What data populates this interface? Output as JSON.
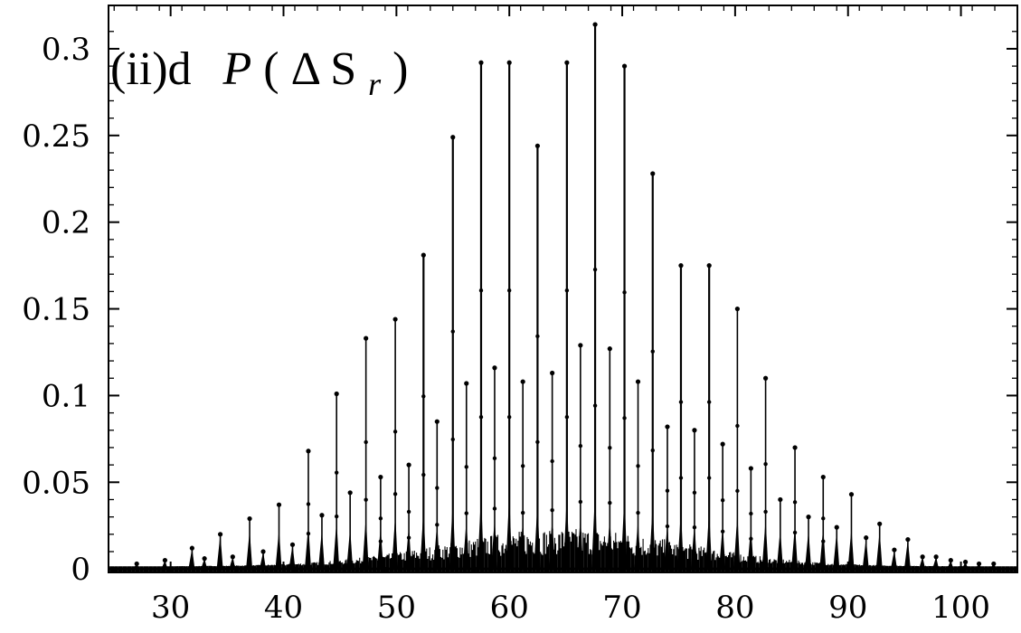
{
  "chart_data": {
    "type": "line",
    "title": "(ii)d",
    "title_math": {
      "fn": "P",
      "open": "(",
      "delta": "Δ",
      "var": "S",
      "sub": "r",
      "close": ")"
    },
    "xlabel": "",
    "ylabel": "",
    "xlim": [
      24.5,
      105
    ],
    "ylim": [
      -0.002,
      0.325
    ],
    "xticks": [
      30,
      40,
      50,
      60,
      70,
      80,
      90,
      100
    ],
    "yticks": [
      0,
      0.05,
      0.1,
      0.15,
      0.2,
      0.25,
      0.3
    ],
    "ytick_labels": [
      "0",
      "0.05",
      "0.1",
      "0.15",
      "0.2",
      "0.25",
      "0.3"
    ],
    "grid": false,
    "legend": "none",
    "color": "#000000",
    "peaks": [
      {
        "x": 27.0,
        "y": 0.003
      },
      {
        "x": 29.5,
        "y": 0.005
      },
      {
        "x": 31.9,
        "y": 0.012
      },
      {
        "x": 33.0,
        "y": 0.006
      },
      {
        "x": 34.4,
        "y": 0.02
      },
      {
        "x": 35.5,
        "y": 0.007
      },
      {
        "x": 37.0,
        "y": 0.029
      },
      {
        "x": 38.2,
        "y": 0.01
      },
      {
        "x": 39.6,
        "y": 0.037
      },
      {
        "x": 40.8,
        "y": 0.014
      },
      {
        "x": 42.2,
        "y": 0.068
      },
      {
        "x": 43.4,
        "y": 0.031
      },
      {
        "x": 44.7,
        "y": 0.101
      },
      {
        "x": 45.9,
        "y": 0.044
      },
      {
        "x": 47.3,
        "y": 0.133
      },
      {
        "x": 48.6,
        "y": 0.053
      },
      {
        "x": 49.9,
        "y": 0.144
      },
      {
        "x": 51.1,
        "y": 0.06
      },
      {
        "x": 52.4,
        "y": 0.181
      },
      {
        "x": 53.6,
        "y": 0.085
      },
      {
        "x": 55.0,
        "y": 0.249
      },
      {
        "x": 56.2,
        "y": 0.107
      },
      {
        "x": 57.5,
        "y": 0.292
      },
      {
        "x": 58.7,
        "y": 0.116
      },
      {
        "x": 60.0,
        "y": 0.292
      },
      {
        "x": 61.2,
        "y": 0.108
      },
      {
        "x": 62.5,
        "y": 0.244
      },
      {
        "x": 63.8,
        "y": 0.113
      },
      {
        "x": 65.1,
        "y": 0.292
      },
      {
        "x": 66.3,
        "y": 0.129
      },
      {
        "x": 67.6,
        "y": 0.314
      },
      {
        "x": 68.9,
        "y": 0.127
      },
      {
        "x": 70.2,
        "y": 0.29
      },
      {
        "x": 71.4,
        "y": 0.108
      },
      {
        "x": 72.7,
        "y": 0.228
      },
      {
        "x": 74.0,
        "y": 0.082
      },
      {
        "x": 75.2,
        "y": 0.175
      },
      {
        "x": 76.4,
        "y": 0.08
      },
      {
        "x": 77.7,
        "y": 0.175
      },
      {
        "x": 78.9,
        "y": 0.072
      },
      {
        "x": 80.2,
        "y": 0.15
      },
      {
        "x": 81.4,
        "y": 0.058
      },
      {
        "x": 82.7,
        "y": 0.11
      },
      {
        "x": 84.0,
        "y": 0.04
      },
      {
        "x": 85.3,
        "y": 0.07
      },
      {
        "x": 86.5,
        "y": 0.03
      },
      {
        "x": 87.8,
        "y": 0.053
      },
      {
        "x": 89.0,
        "y": 0.024
      },
      {
        "x": 90.3,
        "y": 0.043
      },
      {
        "x": 91.6,
        "y": 0.018
      },
      {
        "x": 92.8,
        "y": 0.026
      },
      {
        "x": 94.1,
        "y": 0.011
      },
      {
        "x": 95.3,
        "y": 0.017
      },
      {
        "x": 96.6,
        "y": 0.007
      },
      {
        "x": 97.8,
        "y": 0.007
      },
      {
        "x": 99.1,
        "y": 0.005
      },
      {
        "x": 100.4,
        "y": 0.004
      },
      {
        "x": 101.6,
        "y": 0.003
      },
      {
        "x": 102.9,
        "y": 0.003
      }
    ],
    "baseline_envelope": {
      "center": 65.0,
      "width": 15.0,
      "height": 0.022
    }
  }
}
